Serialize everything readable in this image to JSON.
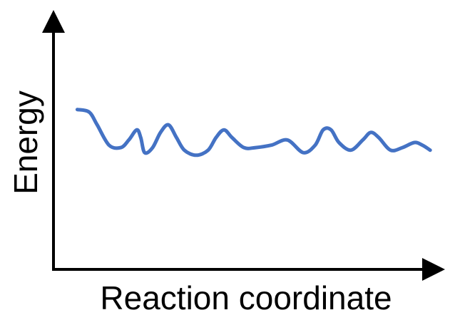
{
  "chart_data": {
    "type": "line",
    "title": "",
    "xlabel": "Reaction coordinate",
    "ylabel": "Energy",
    "ticks": false,
    "grid": false,
    "xlim": [
      0,
      100
    ],
    "ylim": [
      0,
      100
    ],
    "line_color": "#4472c4",
    "axis_color": "#000000",
    "series": [
      {
        "values": [
          [
            6,
            63
          ],
          [
            9,
            62
          ],
          [
            11,
            57
          ],
          [
            14,
            49
          ],
          [
            17,
            48
          ],
          [
            19,
            51
          ],
          [
            21,
            55
          ],
          [
            22,
            52
          ],
          [
            23,
            46
          ],
          [
            25,
            48
          ],
          [
            27,
            54
          ],
          [
            29,
            57
          ],
          [
            31,
            52
          ],
          [
            33,
            47
          ],
          [
            36,
            45
          ],
          [
            39,
            47
          ],
          [
            41,
            52
          ],
          [
            43,
            55
          ],
          [
            45,
            52
          ],
          [
            48,
            48
          ],
          [
            51,
            48
          ],
          [
            55,
            49
          ],
          [
            59,
            51
          ],
          [
            63,
            46
          ],
          [
            66,
            49
          ],
          [
            68,
            55
          ],
          [
            70,
            55
          ],
          [
            72,
            50
          ],
          [
            75,
            47
          ],
          [
            78,
            51
          ],
          [
            80,
            54
          ],
          [
            82,
            52
          ],
          [
            85,
            47
          ],
          [
            88,
            48
          ],
          [
            91,
            50
          ],
          [
            93,
            49
          ],
          [
            95,
            47
          ]
        ]
      }
    ]
  }
}
